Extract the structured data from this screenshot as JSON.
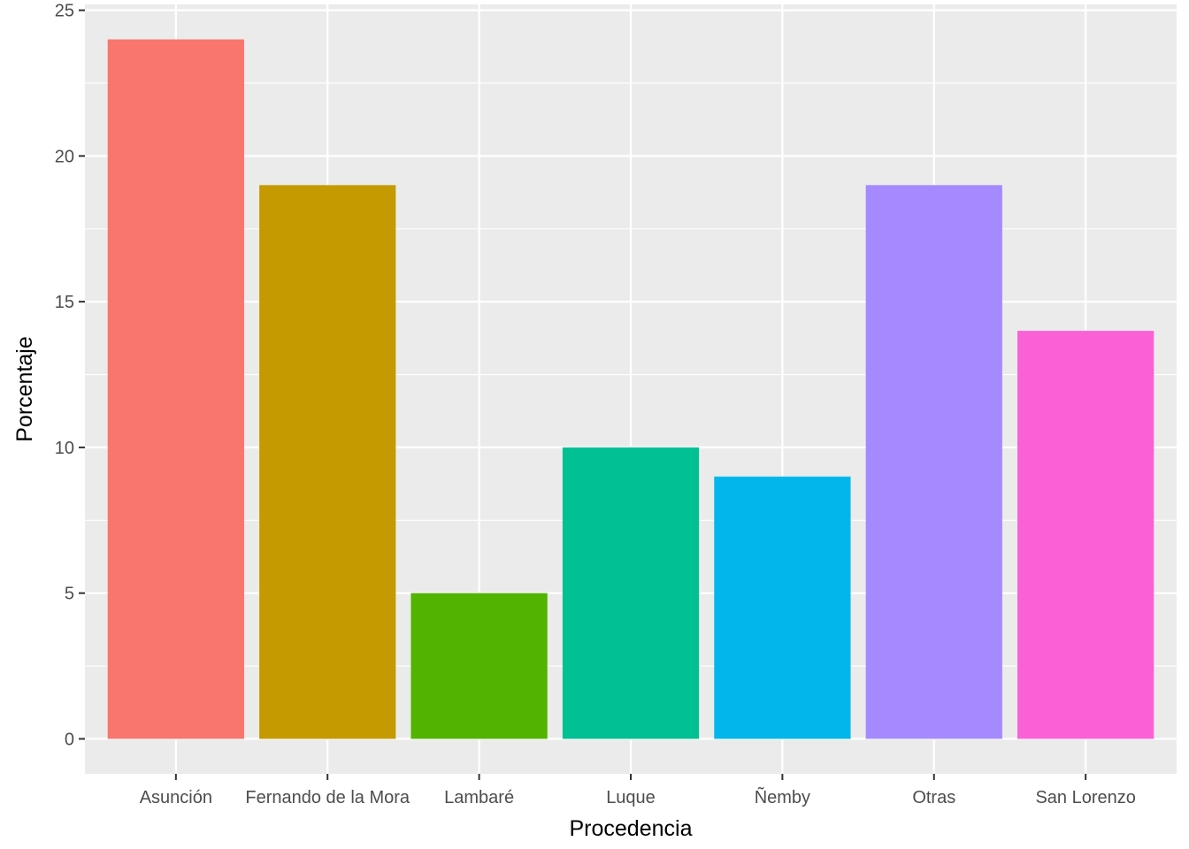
{
  "chart_data": {
    "type": "bar",
    "title": "",
    "xlabel": "Procedencia",
    "ylabel": "Porcentaje",
    "categories": [
      "Asunción",
      "Fernando de la Mora",
      "Lambaré",
      "Luque",
      "Ñemby",
      "Otras",
      "San Lorenzo"
    ],
    "values": [
      24,
      19,
      5,
      10,
      9,
      19,
      14
    ],
    "colors": [
      "#F8766D",
      "#C49A00",
      "#53B400",
      "#00C094",
      "#00B6EB",
      "#A58AFF",
      "#FB61D7"
    ],
    "ylim": [
      -1.2,
      25.2
    ],
    "yticks": [
      0,
      5,
      10,
      15,
      20,
      25
    ],
    "y_minor_ticks": [
      2.5,
      7.5,
      12.5,
      17.5,
      22.5
    ],
    "grid": true,
    "legend": "none",
    "panel_background": "#EBEBEB",
    "grid_color": "#FFFFFF"
  }
}
